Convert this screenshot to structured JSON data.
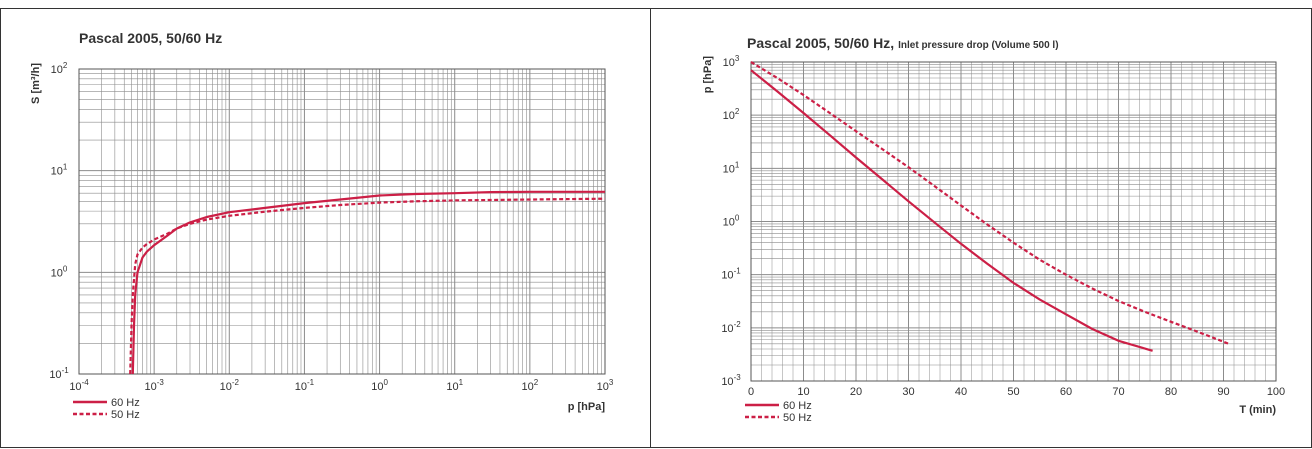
{
  "colors": {
    "series": "#cc1f46",
    "grid": "#8c8c8c",
    "axis": "#555555"
  },
  "chart_data": [
    {
      "type": "line",
      "title": "Pascal 2005, 50/60 Hz",
      "subtitle": "",
      "xlabel": "p [hPa]",
      "ylabel": "S [m³/h]",
      "xscale": "log",
      "yscale": "log",
      "xlim": [
        0.0001,
        1000
      ],
      "ylim": [
        0.1,
        100
      ],
      "x_tick_labels": [
        {
          "base": "10",
          "exp": "-4"
        },
        {
          "base": "10",
          "exp": "-3"
        },
        {
          "base": "10",
          "exp": "-2"
        },
        {
          "base": "10",
          "exp": "-1"
        },
        {
          "base": "10",
          "exp": "0"
        },
        {
          "base": "10",
          "exp": "1"
        },
        {
          "base": "10",
          "exp": "2"
        },
        {
          "base": "10",
          "exp": "3"
        }
      ],
      "y_tick_labels": [
        {
          "base": "10",
          "exp": "-1"
        },
        {
          "base": "10",
          "exp": "0"
        },
        {
          "base": "10",
          "exp": "1"
        },
        {
          "base": "10",
          "exp": "2"
        }
      ],
      "grid": true,
      "legend_position": "bottom-left",
      "series": [
        {
          "name": "60 Hz",
          "style": "solid",
          "x": [
            0.00052,
            0.00054,
            0.00056,
            0.0006,
            0.0007,
            0.0008,
            0.001,
            0.0015,
            0.002,
            0.003,
            0.005,
            0.01,
            0.03,
            0.1,
            0.3,
            1,
            3,
            10,
            30,
            100,
            1000
          ],
          "y": [
            0.1,
            0.3,
            0.6,
            1.0,
            1.4,
            1.6,
            1.85,
            2.3,
            2.7,
            3.1,
            3.5,
            3.9,
            4.3,
            4.8,
            5.2,
            5.7,
            5.9,
            6.0,
            6.15,
            6.2,
            6.2
          ]
        },
        {
          "name": "50 Hz",
          "style": "dashed",
          "x": [
            0.00048,
            0.0005,
            0.00052,
            0.00056,
            0.0006,
            0.0007,
            0.0008,
            0.001,
            0.0015,
            0.002,
            0.003,
            0.005,
            0.01,
            0.03,
            0.1,
            0.3,
            1,
            3,
            10,
            30,
            100,
            1000
          ],
          "y": [
            0.1,
            0.3,
            0.6,
            1.2,
            1.5,
            1.75,
            1.9,
            2.1,
            2.4,
            2.7,
            3.0,
            3.3,
            3.6,
            3.95,
            4.3,
            4.6,
            4.85,
            5.0,
            5.1,
            5.15,
            5.2,
            5.3
          ]
        }
      ]
    },
    {
      "type": "line",
      "title": "Pascal 2005, 50/60 Hz,",
      "subtitle": "Inlet pressure drop (Volume 500 l)",
      "xlabel": "T (min)",
      "ylabel": "p [hPa]",
      "xscale": "linear",
      "yscale": "log",
      "xlim": [
        0,
        100
      ],
      "ylim": [
        0.001,
        1000
      ],
      "x_ticks": [
        0,
        10,
        20,
        30,
        40,
        50,
        60,
        70,
        80,
        90,
        100
      ],
      "x_tick_labels": [
        "0",
        "10",
        "20",
        "30",
        "40",
        "50",
        "60",
        "70",
        "80",
        "90",
        "100"
      ],
      "y_tick_labels": [
        {
          "base": "10",
          "exp": "-3"
        },
        {
          "base": "10",
          "exp": "-2"
        },
        {
          "base": "10",
          "exp": "-1"
        },
        {
          "base": "10",
          "exp": "0"
        },
        {
          "base": "10",
          "exp": "1"
        },
        {
          "base": "10",
          "exp": "2"
        },
        {
          "base": "10",
          "exp": "3"
        }
      ],
      "grid": true,
      "legend_position": "bottom-left",
      "series": [
        {
          "name": "60 Hz",
          "style": "solid",
          "x": [
            0,
            5,
            10,
            15,
            20,
            25,
            30,
            35,
            40,
            45,
            50,
            55,
            60,
            65,
            70,
            76.5
          ],
          "y": [
            700,
            280,
            110,
            42,
            16,
            6.2,
            2.4,
            0.95,
            0.38,
            0.16,
            0.07,
            0.034,
            0.018,
            0.0095,
            0.0057,
            0.0037
          ]
        },
        {
          "name": "50 Hz",
          "style": "dashed",
          "x": [
            0,
            5,
            10,
            15,
            20,
            25,
            30,
            35,
            40,
            45,
            50,
            55,
            60,
            65,
            70,
            75,
            80,
            85,
            91
          ],
          "y": [
            1000,
            500,
            240,
            110,
            50,
            23,
            10.5,
            4.6,
            2.0,
            0.88,
            0.4,
            0.19,
            0.1,
            0.055,
            0.032,
            0.02,
            0.013,
            0.0085,
            0.005
          ]
        }
      ]
    }
  ]
}
